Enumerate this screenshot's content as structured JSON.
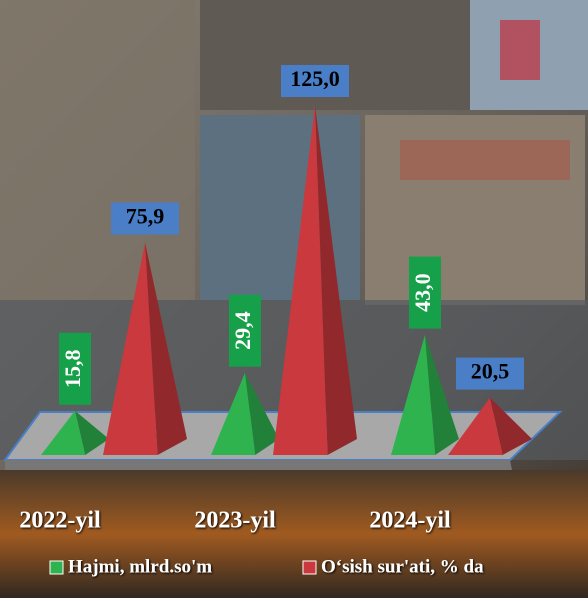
{
  "chart_data": {
    "type": "pyramid",
    "categories": [
      "2022-yil",
      "2023-yil",
      "2024-yil"
    ],
    "series": [
      {
        "name": "Hajmi, mlrd.so'm",
        "color": "#2fb34f",
        "values": [
          15.8,
          29.4,
          43.0
        ],
        "value_labels": [
          "15,8",
          "29,4",
          "43,0"
        ]
      },
      {
        "name": "O‘sish sur'ati, % da",
        "color": "#c9393d",
        "values": [
          75.9,
          125.0,
          20.5
        ],
        "value_labels": [
          "75,9",
          "125,0",
          "20,5"
        ]
      }
    ]
  }
}
